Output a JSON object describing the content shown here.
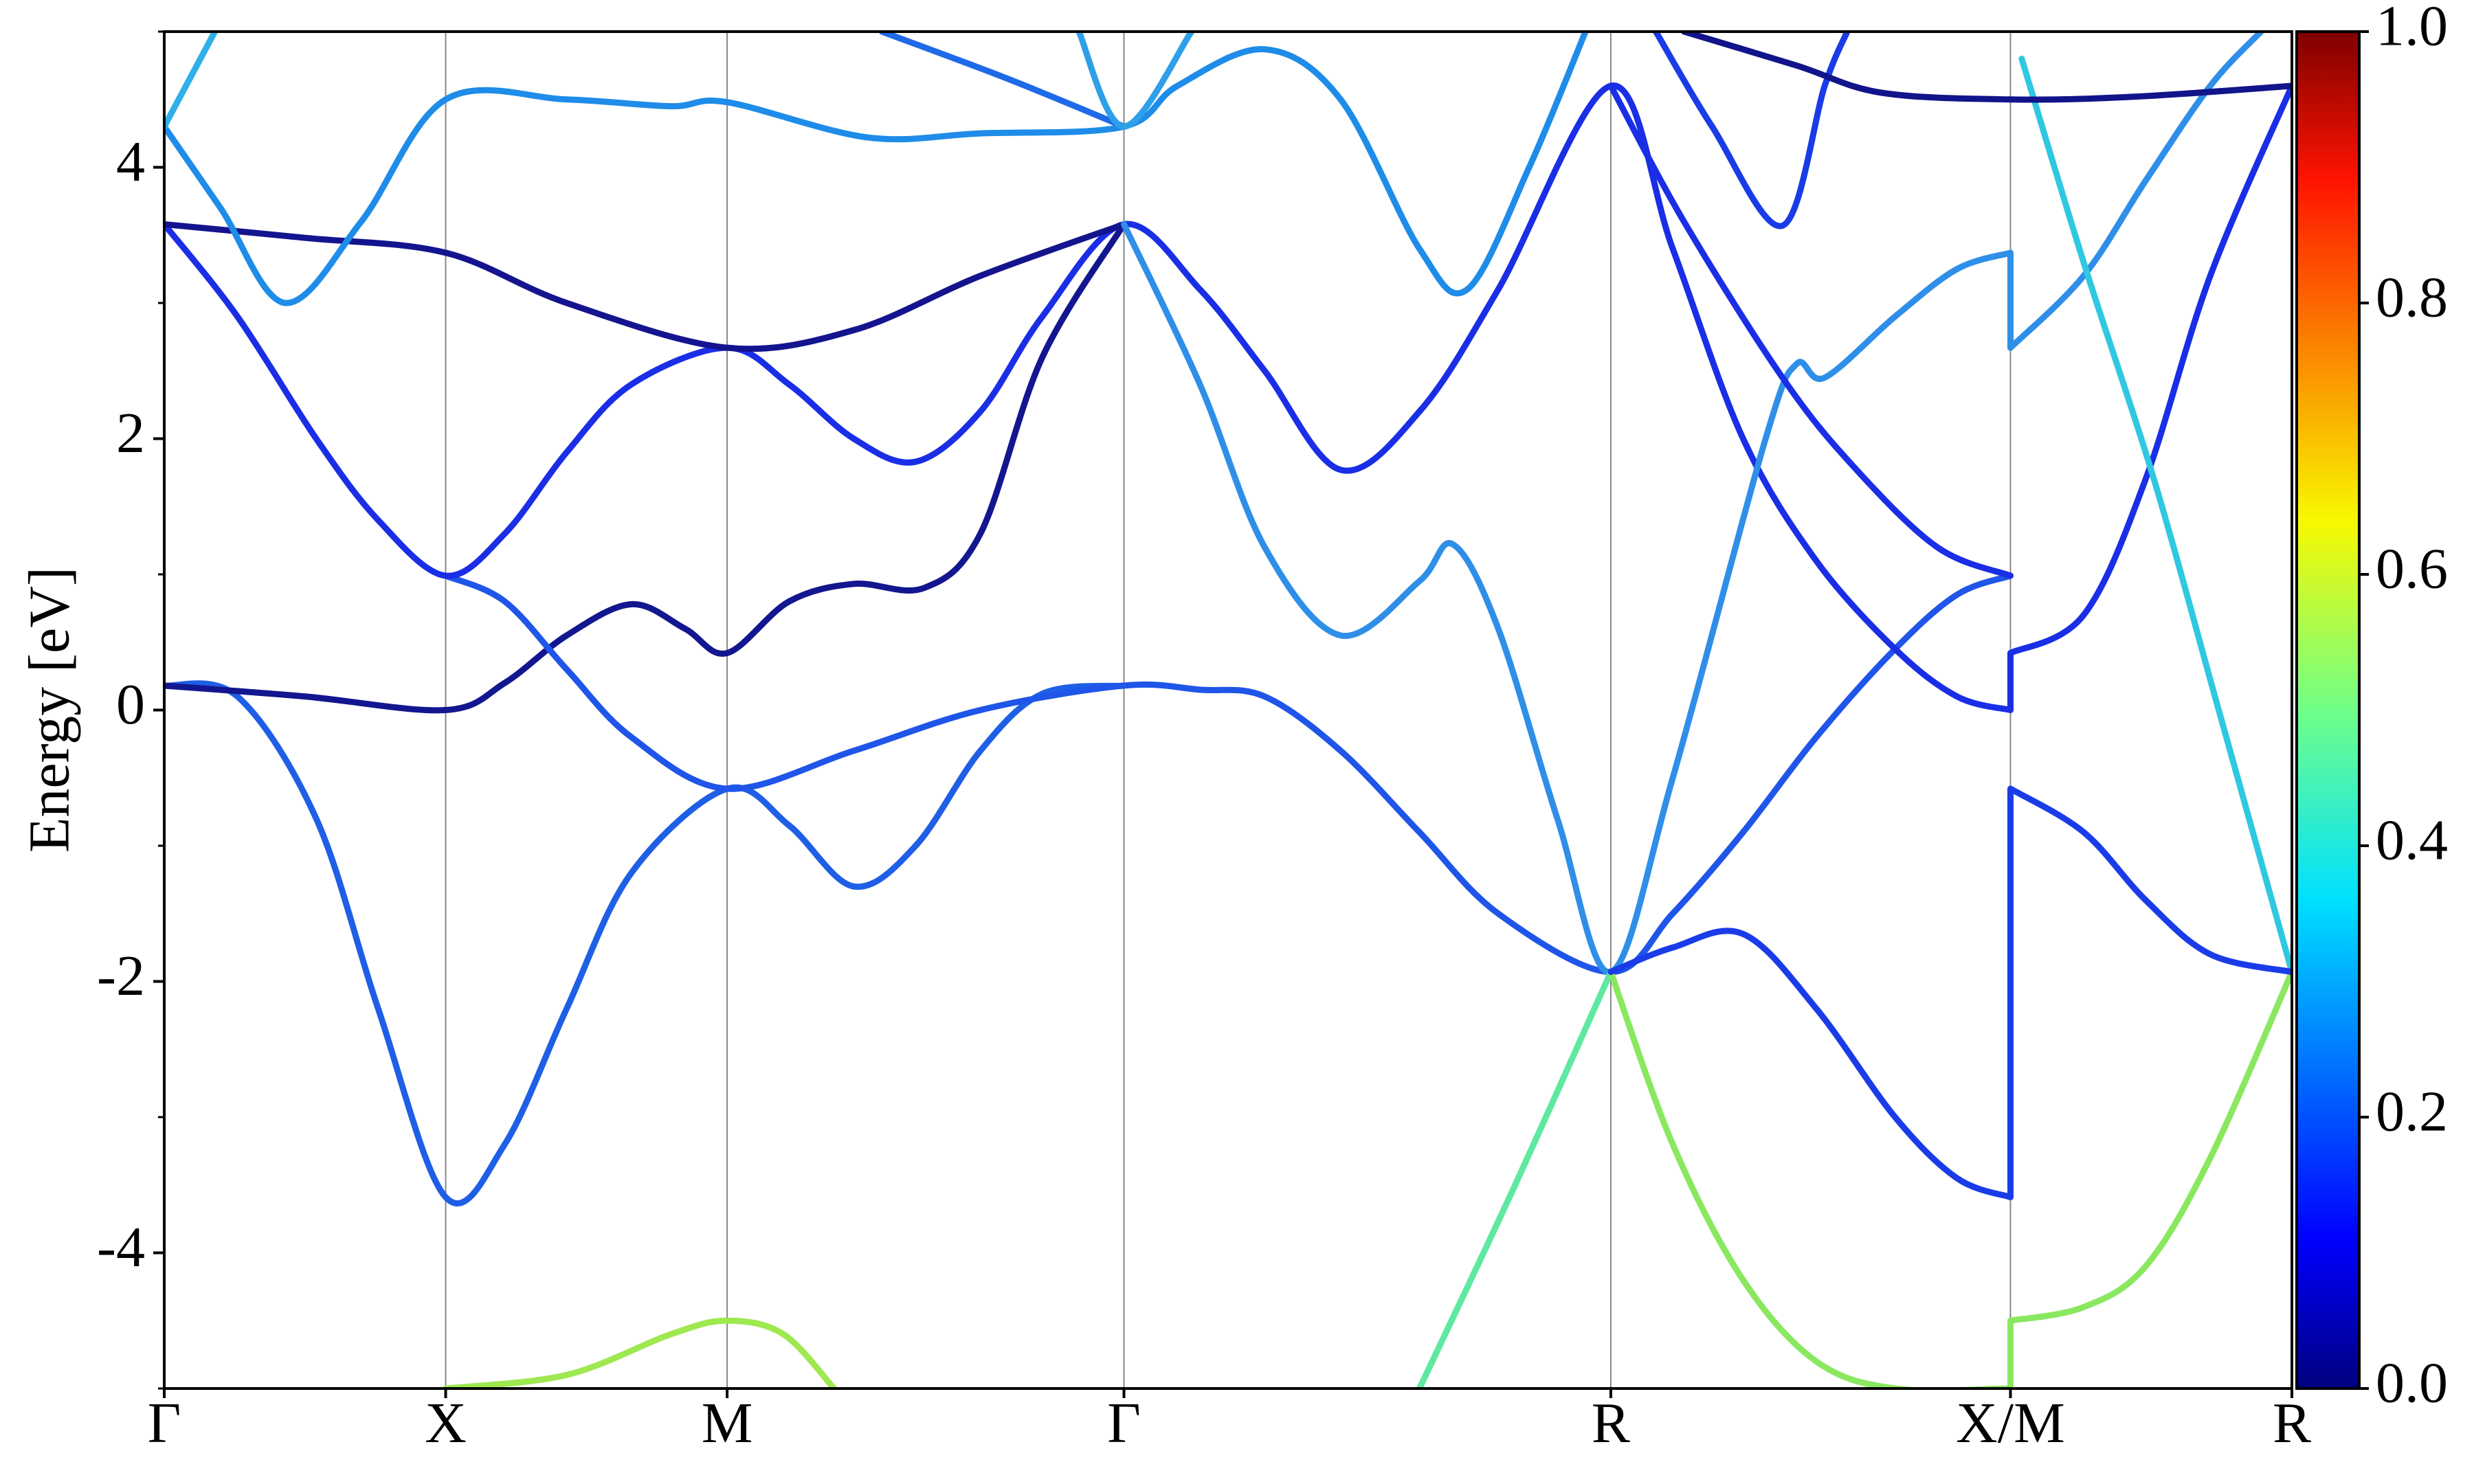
{
  "chart_data": {
    "type": "line",
    "ylabel": "Energy [eV]",
    "xlim": [
      0,
      7.56
    ],
    "ylim": [
      -5,
      5
    ],
    "xticks": [
      {
        "value": 0,
        "label": "Γ"
      },
      {
        "value": 1.0,
        "label": "X"
      },
      {
        "value": 2.0,
        "label": "M"
      },
      {
        "value": 3.41,
        "label": "Γ"
      },
      {
        "value": 5.14,
        "label": "R"
      },
      {
        "value": 6.56,
        "label": "X/M"
      },
      {
        "value": 7.56,
        "label": "R"
      }
    ],
    "yticks": [
      -4,
      -2,
      0,
      2,
      4
    ],
    "minor_yticks": [
      -5,
      -3,
      -1,
      1,
      3,
      5
    ],
    "grid": true,
    "colorbar": {
      "lim": [
        0,
        1
      ],
      "ticks": [
        {
          "value": 0,
          "label": "0.0"
        },
        {
          "value": 0.2,
          "label": "0.2"
        },
        {
          "value": 0.4,
          "label": "0.4"
        },
        {
          "value": 0.6,
          "label": "0.6"
        },
        {
          "value": 0.8,
          "label": "0.8"
        },
        {
          "value": 1,
          "label": "1.0"
        }
      ]
    },
    "series": [
      {
        "color": "#1f5fe6",
        "x": [
          0,
          0.26,
          0.54,
          0.76,
          1.0,
          1.21,
          1.43,
          1.66,
          2.0,
          2.22,
          2.45,
          2.67,
          2.9,
          3.12,
          3.41
        ],
        "values": [
          0.18,
          0.1,
          -0.8,
          -2.2,
          -3.59,
          -3.2,
          -2.2,
          -1.2,
          -0.58,
          -0.85,
          -1.3,
          -1.0,
          -0.3,
          0.12,
          0.18
        ]
      },
      {
        "color": "#12168f",
        "x": [
          0,
          0.5,
          1.0,
          1.21,
          1.43,
          1.66,
          1.85,
          2.0,
          2.22,
          2.45,
          2.7,
          2.9,
          3.12,
          3.41
        ],
        "values": [
          0.18,
          0.1,
          0.0,
          0.2,
          0.55,
          0.78,
          0.6,
          0.42,
          0.8,
          0.93,
          0.9,
          1.3,
          2.6,
          3.58
        ]
      },
      {
        "color": "#1f55e8",
        "x": [
          1.0,
          1.21,
          1.43,
          1.66,
          2.0,
          2.45,
          2.9,
          3.41,
          3.68,
          3.91,
          4.18,
          4.46,
          4.74,
          5.14,
          5.36,
          5.61,
          5.87,
          6.15,
          6.37,
          6.56
        ],
        "values": [
          0.99,
          0.8,
          0.3,
          -0.2,
          -0.58,
          -0.3,
          0.0,
          0.18,
          0.15,
          0.1,
          -0.3,
          -0.9,
          -1.5,
          -1.93,
          -1.5,
          -0.9,
          -0.2,
          0.45,
          0.85,
          0.99
        ]
      },
      {
        "color": "#1a2ee6",
        "x": [
          0,
          0.26,
          0.54,
          0.76,
          1.0,
          1.21,
          1.43,
          1.66,
          2.0,
          2.22,
          2.45,
          2.67,
          2.9,
          3.12,
          3.41,
          3.68,
          3.91,
          4.18,
          4.46,
          4.74,
          5.14,
          5.36,
          5.61,
          5.87,
          6.15,
          6.37,
          6.56,
          6.56,
          6.82,
          7.04,
          7.27,
          7.56
        ],
        "values": [
          3.58,
          2.9,
          2.0,
          1.4,
          0.99,
          1.3,
          1.9,
          2.4,
          2.67,
          2.4,
          2.0,
          1.83,
          2.2,
          2.9,
          3.58,
          3.1,
          2.5,
          1.77,
          2.2,
          3.1,
          4.6,
          3.4,
          2.0,
          1.1,
          0.45,
          0.1,
          0.0,
          0.42,
          0.7,
          1.7,
          3.2,
          4.6
        ]
      },
      {
        "color": "#14148f",
        "x": [
          0,
          0.5,
          1.0,
          1.43,
          2.0,
          2.45,
          2.9,
          3.41
        ],
        "values": [
          3.58,
          3.48,
          3.37,
          3.0,
          2.67,
          2.8,
          3.2,
          3.58
        ]
      },
      {
        "color": "#2f8fe8",
        "x": [
          3.41,
          3.68,
          3.91,
          4.18,
          4.46,
          4.58,
          4.74,
          4.95,
          5.14,
          5.36,
          5.69,
          5.8,
          5.9,
          6.15,
          6.37,
          6.56,
          6.56,
          6.82,
          7.04,
          7.27,
          7.45
        ],
        "values": [
          3.58,
          2.4,
          1.2,
          0.55,
          0.95,
          1.22,
          0.6,
          -0.8,
          -1.93,
          -0.5,
          2.0,
          2.55,
          2.45,
          2.9,
          3.25,
          3.37,
          2.67,
          3.2,
          3.9,
          4.6,
          5.0
        ]
      },
      {
        "color": "#1e8ce8",
        "x": [
          0,
          0.2,
          0.43,
          0.7,
          1.0,
          1.43,
          1.8,
          2.0,
          2.5,
          2.9,
          3.41,
          3.6,
          3.91,
          4.18,
          4.46,
          4.63,
          4.85,
          5.05
        ],
        "values": [
          4.3,
          3.7,
          3.0,
          3.6,
          4.5,
          4.5,
          4.45,
          4.48,
          4.22,
          4.25,
          4.3,
          4.6,
          4.87,
          4.5,
          3.4,
          3.1,
          4.0,
          5.0
        ]
      },
      {
        "color": "#1a3ce6",
        "x": [
          5.3,
          5.5,
          5.75,
          5.9,
          5.98
        ],
        "values": [
          5.0,
          4.3,
          3.57,
          4.6,
          5.0
        ]
      },
      {
        "color": "#30c8e0",
        "x": [
          6.6,
          6.82,
          7.07,
          7.3,
          7.56
        ],
        "values": [
          4.8,
          3.3,
          1.7,
          0,
          -1.93
        ]
      },
      {
        "color": "#9ee850",
        "x": [
          1.0,
          1.43,
          1.8,
          2.0,
          2.2,
          2.38
        ],
        "values": [
          -5,
          -4.9,
          -4.6,
          -4.5,
          -4.6,
          -5
        ]
      },
      {
        "color": "#5ee8a0",
        "x": [
          4.46,
          4.8,
          5.14
        ],
        "values": [
          -5,
          -3.5,
          -1.93
        ]
      },
      {
        "color": "#8ae860",
        "x": [
          5.14,
          5.36,
          5.61,
          5.87,
          6.15,
          6.56,
          6.56,
          6.82,
          7.04,
          7.27,
          7.56
        ],
        "values": [
          -1.93,
          -3.2,
          -4.2,
          -4.8,
          -5.0,
          -5.0,
          -4.5,
          -4.4,
          -4.1,
          -3.3,
          -1.93
        ]
      },
      {
        "color": "#1a3ce8",
        "x": [
          5.14,
          5.36,
          5.61,
          5.87,
          6.15,
          6.37,
          6.56,
          6.56,
          6.82,
          7.04,
          7.27,
          7.56
        ],
        "values": [
          -1.93,
          -1.75,
          -1.65,
          -2.2,
          -3.0,
          -3.45,
          -3.59,
          -0.58,
          -0.9,
          -1.4,
          -1.8,
          -1.93
        ]
      },
      {
        "color": "#12148a",
        "x": [
          5.4,
          5.8,
          6.1,
          6.56,
          7.0,
          7.56
        ],
        "values": [
          5.0,
          4.75,
          4.55,
          4.5,
          4.52,
          4.6
        ]
      },
      {
        "color": "#2fb0e8",
        "x": [
          0,
          0.18
        ],
        "values": [
          4.3,
          5.0
        ]
      },
      {
        "color": "#1f6ae8",
        "x": [
          2.55,
          3.0,
          3.41
        ],
        "values": [
          5.0,
          4.65,
          4.3
        ]
      },
      {
        "color": "#2fa0e8",
        "x": [
          3.25,
          3.41,
          3.65
        ],
        "values": [
          5.0,
          4.3,
          5.0
        ]
      },
      {
        "color": "#1a2ee6",
        "x": [
          5.14,
          5.4,
          5.75,
          6.0,
          6.3,
          6.56
        ],
        "values": [
          4.6,
          3.6,
          2.45,
          1.8,
          1.2,
          0.99
        ]
      }
    ]
  }
}
